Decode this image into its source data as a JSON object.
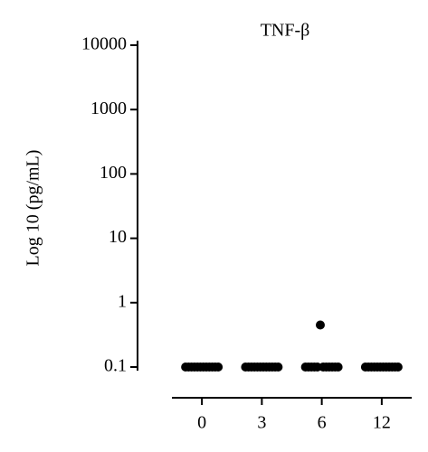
{
  "chart_data": {
    "type": "strip",
    "title": "TNF-β",
    "y_label": "Log 10 (pg/mL)",
    "categories": [
      "0",
      "3",
      "6",
      "12"
    ],
    "values": [
      [
        0.1,
        0.1,
        0.1,
        0.1,
        0.1,
        0.1,
        0.1,
        0.1,
        0.1,
        0.1,
        0.1,
        0.1
      ],
      [
        0.1,
        0.1,
        0.1,
        0.1,
        0.1,
        0.1,
        0.1,
        0.1,
        0.1,
        0.1,
        0.1,
        0.1
      ],
      [
        0.1,
        0.1,
        0.1,
        0.1,
        0.1,
        0.45,
        0.1,
        0.1,
        0.1,
        0.1,
        0.1,
        0.1
      ],
      [
        0.1,
        0.1,
        0.1,
        0.1,
        0.1,
        0.1,
        0.1,
        0.1,
        0.1,
        0.1,
        0.1,
        0.1
      ]
    ],
    "color": "#000000",
    "log_scale": true,
    "ylim": [
      0.1,
      10000
    ],
    "yticks": [
      0.1,
      1,
      10,
      100,
      1000,
      10000
    ]
  }
}
